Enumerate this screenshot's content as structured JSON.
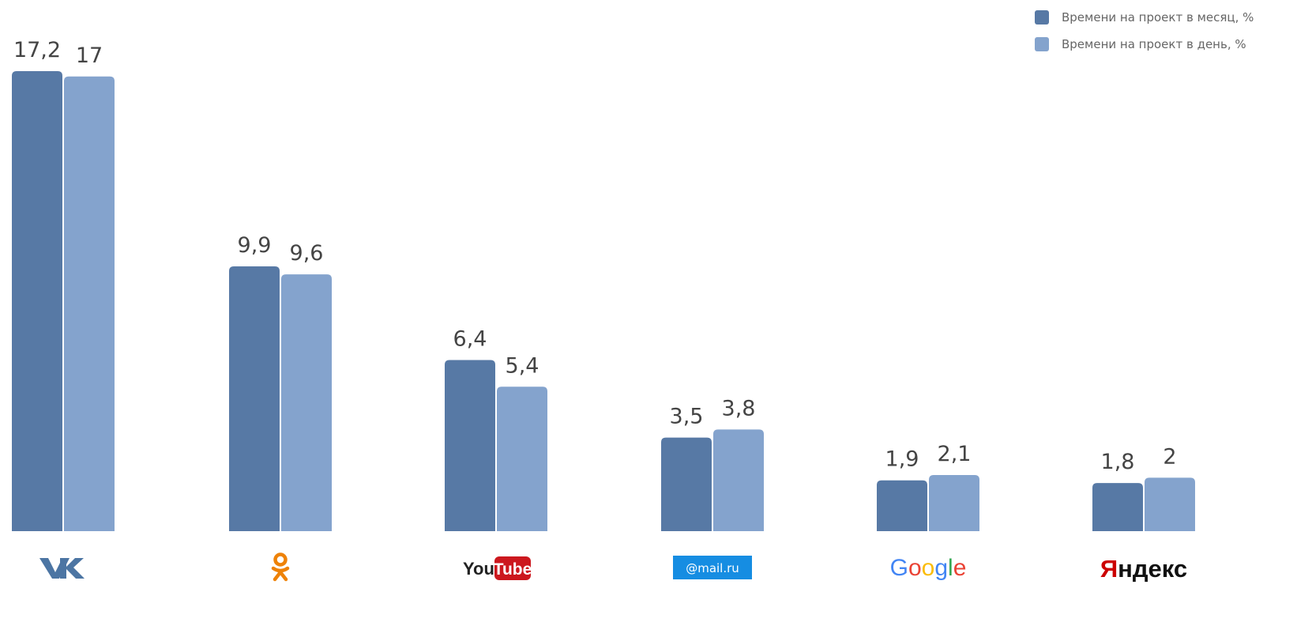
{
  "chart_data": {
    "type": "bar",
    "categories": [
      "VK",
      "ok",
      "YouTube",
      "@mail.ru",
      "Google",
      "Яндекс"
    ],
    "series": [
      {
        "name": "Времени на проект в месяц, %",
        "color": "#5779a5",
        "values": [
          17.2,
          9.9,
          6.4,
          3.5,
          1.9,
          1.8
        ],
        "labels": [
          "17,2",
          "9,9",
          "6,4",
          "3,5",
          "1,9",
          "1,8"
        ]
      },
      {
        "name": "Времени на проект в день, %",
        "color": "#84a3cd",
        "values": [
          17,
          9.6,
          5.4,
          3.8,
          2.1,
          2
        ],
        "labels": [
          "17",
          "9,6",
          "5,4",
          "3,8",
          "2,1",
          "2"
        ]
      }
    ],
    "ylim": [
      0,
      17.2
    ],
    "grid": false,
    "legend_position": "top-right",
    "logos": [
      {
        "text": "",
        "icon": "vk-logo-icon",
        "color": "#4c75a3"
      },
      {
        "text": "",
        "icon": "odnoklassniki-logo-icon",
        "color": "#ee8208"
      },
      {
        "text_you": "You",
        "text_tube": "Tube",
        "icon": "youtube-logo-icon",
        "color": "#cc181e"
      },
      {
        "text": "@mail.ru",
        "icon": "mailru-logo-icon",
        "color": "#168de2"
      },
      {
        "text": "Google",
        "icon": "google-logo-icon",
        "color": "#4285f4"
      },
      {
        "text": "Яндекс",
        "icon": "yandex-logo-icon",
        "color": "#cc0000"
      }
    ]
  }
}
